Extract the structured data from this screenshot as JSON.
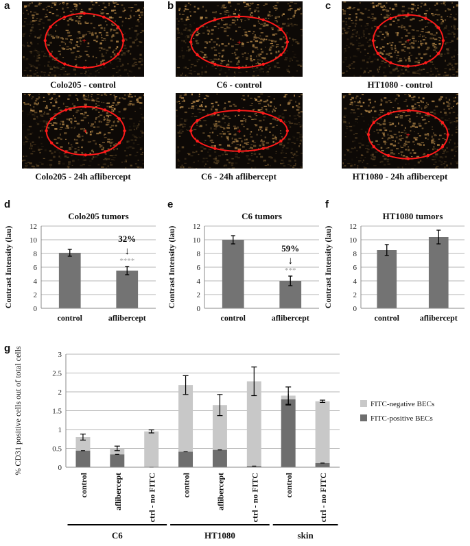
{
  "panel_letters": {
    "a": "a",
    "b": "b",
    "c": "c",
    "d": "d",
    "e": "e",
    "f": "f",
    "g": "g"
  },
  "images": [
    {
      "caption": "Colo205 - control"
    },
    {
      "caption": "C6 - control"
    },
    {
      "caption": "HT1080 - control"
    },
    {
      "caption": "Colo205 - 24h aflibercept"
    },
    {
      "caption": "C6 - 24h aflibercept"
    },
    {
      "caption": "HT1080 - 24h aflibercept"
    }
  ],
  "chart_data": [
    {
      "type": "bar",
      "title": "Colo205 tumors",
      "ylabel": "Contrast Intensity (lau)",
      "categories": [
        "control",
        "aflibercept"
      ],
      "values": [
        8.1,
        5.5
      ],
      "errors": [
        0.5,
        0.6
      ],
      "ylim": [
        0,
        12
      ],
      "yticks": [
        "0",
        "2",
        "4",
        "6",
        "8",
        "10",
        "12"
      ],
      "bar_color": "#737373",
      "annotation": {
        "percent": "32%",
        "arrow": "↓",
        "stars": "****"
      }
    },
    {
      "type": "bar",
      "title": "C6 tumors",
      "ylabel": "Contrast Intensity (lau)",
      "categories": [
        "control",
        "aflibercept"
      ],
      "values": [
        10.0,
        4.0
      ],
      "errors": [
        0.6,
        0.7
      ],
      "ylim": [
        0,
        12
      ],
      "yticks": [
        "0",
        "2",
        "4",
        "6",
        "8",
        "10",
        "12"
      ],
      "bar_color": "#737373",
      "annotation": {
        "percent": "59%",
        "arrow": "↓",
        "stars": "***"
      }
    },
    {
      "type": "bar",
      "title": "HT1080 tumors",
      "ylabel": "Contrast Intensity (lau)",
      "categories": [
        "control",
        "aflibercept"
      ],
      "values": [
        8.5,
        10.4
      ],
      "errors": [
        0.8,
        1.0
      ],
      "ylim": [
        0,
        12
      ],
      "yticks": [
        "0",
        "2",
        "4",
        "6",
        "8",
        "10",
        "12"
      ],
      "bar_color": "#737373"
    },
    {
      "type": "bar",
      "stacked": true,
      "ylabel": "% CD31 positive cells out of total cells",
      "categories": [
        "control",
        "aflibercept",
        "ctrl - no FITC",
        "control",
        "aflibercept",
        "ctrl - no FITC",
        "control",
        "ctrl - no FITC"
      ],
      "groups": [
        {
          "label": "C6",
          "start": 0,
          "end": 2
        },
        {
          "label": "HT1080",
          "start": 3,
          "end": 5
        },
        {
          "label": "skin",
          "start": 6,
          "end": 7
        }
      ],
      "series": [
        {
          "name": "FITC-positive BECs",
          "color": "#6e6e6e",
          "values": [
            0.44,
            0.34,
            0.0,
            0.41,
            0.46,
            0.03,
            1.8,
            0.11
          ],
          "errors": [
            0.0,
            0.0,
            0.0,
            0.0,
            0.0,
            0.0,
            0.15,
            0.0
          ]
        },
        {
          "name": "FITC-negative BECs",
          "color": "#c8c8c8",
          "totals": [
            0.8,
            0.5,
            0.95,
            2.18,
            1.65,
            2.28,
            1.9,
            1.75
          ],
          "errors": [
            0.08,
            0.06,
            0.04,
            0.25,
            0.28,
            0.38,
            0.23,
            0.03
          ]
        }
      ],
      "ylim": [
        0,
        3
      ],
      "yticks": [
        "0",
        "0.5",
        "1",
        "1.5",
        "2",
        "2.5",
        "3"
      ],
      "legend_position": "right"
    }
  ]
}
